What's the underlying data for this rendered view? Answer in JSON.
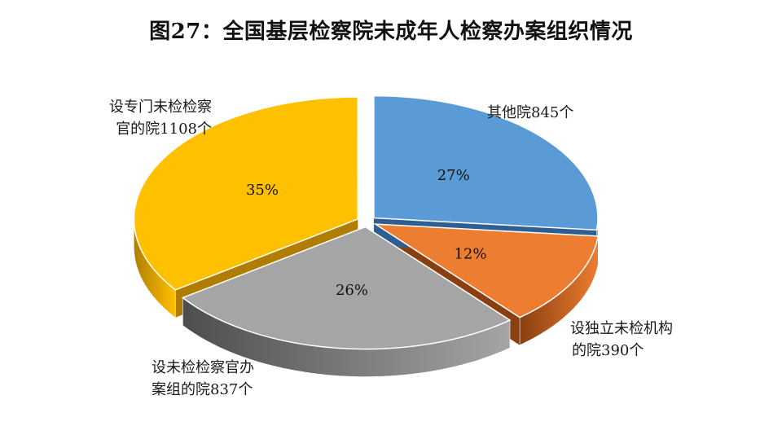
{
  "chart_data": {
    "type": "pie",
    "style": "3d-exploded",
    "title": "图27：全国基层检察院未成年人检察办案组织情况",
    "slices": [
      {
        "name": "其他院845个",
        "lines": [
          "其他院845个"
        ],
        "value": 845,
        "percent_label": "27%",
        "color": "#5b9bd5",
        "side_color": "#2e5f92"
      },
      {
        "name": "设独立未检机构的院390个",
        "lines": [
          "设独立未检机构",
          "的院390个"
        ],
        "value": 390,
        "percent_label": "12%",
        "color": "#ed7d31",
        "side_color": "#8a3f10"
      },
      {
        "name": "设未检检察官办案组的院837个",
        "lines": [
          "设未检检察官办",
          "案组的院837个"
        ],
        "value": 837,
        "percent_label": "26%",
        "color": "#a5a5a5",
        "side_color": "#4d4d4d"
      },
      {
        "name": "设专门未检检察官的院1108个",
        "lines": [
          "设专门未检检察",
          "官的院1108个"
        ],
        "value": 1108,
        "percent_label": "35%",
        "color": "#ffc000",
        "side_color": "#b07d00"
      }
    ]
  }
}
